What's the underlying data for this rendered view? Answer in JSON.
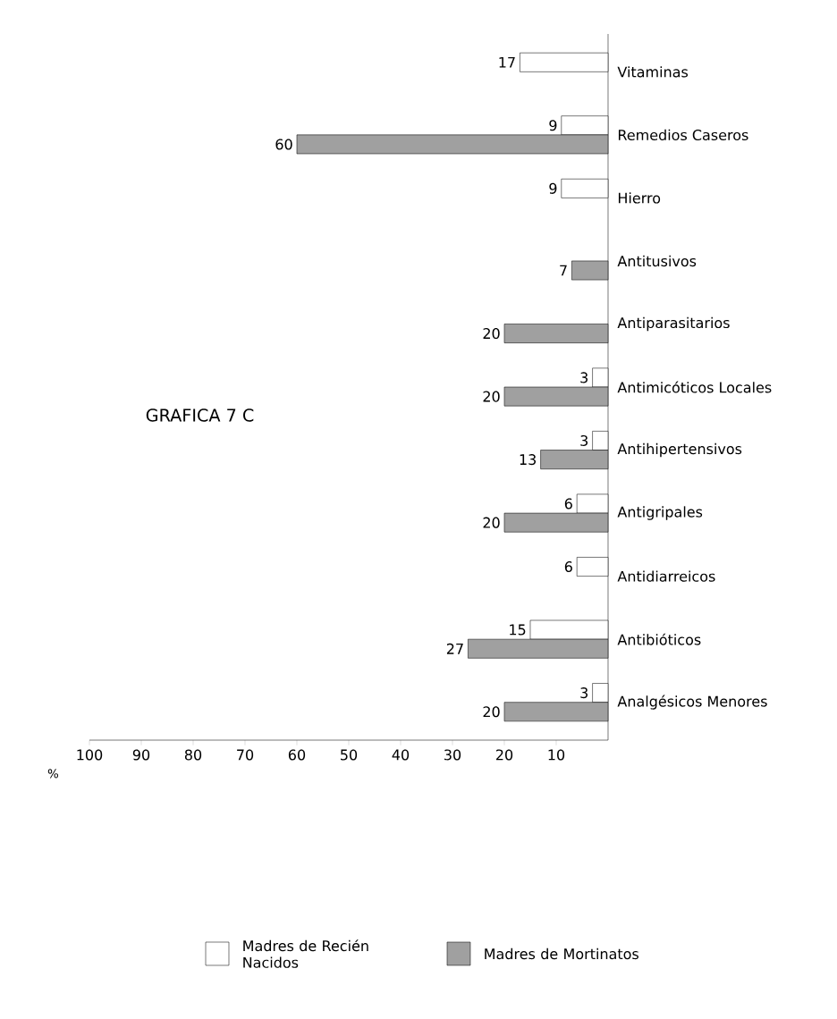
{
  "chart_data": {
    "type": "bar",
    "orientation": "horizontal",
    "title": "GRAFICA 7 C",
    "xlabel": "%",
    "categories": [
      "Vitaminas",
      "Remedios Caseros",
      "Hierro",
      "Antitusivos",
      "Antiparasitarios",
      "Antimicóticos Locales",
      "Antihipertensivos",
      "Antigripales",
      "Antidiarreicos",
      "Antibióticos",
      "Analgésicos Menores"
    ],
    "series": [
      {
        "name": "Madres de Recién Nacidos",
        "color": "#ffffff",
        "values": [
          17,
          9,
          9,
          null,
          null,
          3,
          3,
          6,
          6,
          15,
          3
        ]
      },
      {
        "name": "Madres de Mortinatos",
        "color": "#a0a0a0",
        "values": [
          null,
          60,
          null,
          7,
          20,
          20,
          13,
          20,
          null,
          27,
          20
        ]
      }
    ],
    "xlim": [
      100,
      0
    ],
    "xticks": [
      100,
      90,
      80,
      70,
      60,
      50,
      40,
      30,
      20,
      10
    ],
    "data_labels": true,
    "legend": "bottom",
    "grid": false
  }
}
